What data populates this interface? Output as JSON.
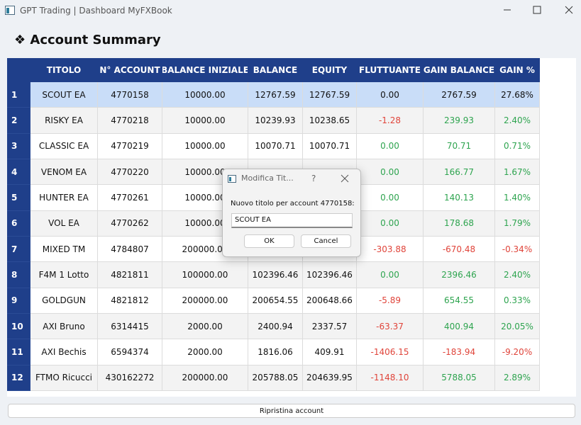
{
  "window": {
    "title": "GPT Trading | Dashboard MyFXBook"
  },
  "header": {
    "title": "Account Summary"
  },
  "table": {
    "columns": [
      "TITOLO",
      "N° ACCOUNT",
      "BALANCE INIZIALE",
      "BALANCE",
      "EQUITY",
      "FLUTTUANTE",
      "GAIN BALANCE",
      "GAIN %"
    ],
    "rows": [
      {
        "number": "1",
        "cells": [
          "SCOUT EA",
          "4770158",
          "10000.00",
          "12767.59",
          "12767.59",
          "0.00",
          "2767.59",
          "27.68%"
        ]
      },
      {
        "number": "2",
        "cells": [
          "RISKY EA",
          "4770218",
          "10000.00",
          "10239.93",
          "10238.65",
          "-1.28",
          "239.93",
          "2.40%"
        ]
      },
      {
        "number": "3",
        "cells": [
          "CLASSIC EA",
          "4770219",
          "10000.00",
          "10070.71",
          "10070.71",
          "0.00",
          "70.71",
          "0.71%"
        ]
      },
      {
        "number": "4",
        "cells": [
          "VENOM EA",
          "4770220",
          "10000.00",
          null,
          null,
          "0.00",
          "166.77",
          "1.67%"
        ]
      },
      {
        "number": "5",
        "cells": [
          "HUNTER EA",
          "4770261",
          "10000.00",
          null,
          null,
          "0.00",
          "140.13",
          "1.40%"
        ]
      },
      {
        "number": "6",
        "cells": [
          "VOL EA",
          "4770262",
          "10000.00",
          null,
          null,
          "0.00",
          "178.68",
          "1.79%"
        ]
      },
      {
        "number": "7",
        "cells": [
          "MIXED TM",
          "4784807",
          "200000.00",
          null,
          null,
          "-303.88",
          "-670.48",
          "-0.34%"
        ]
      },
      {
        "number": "8",
        "cells": [
          "F4M 1 Lotto",
          "4821811",
          "100000.00",
          "102396.46",
          "102396.46",
          "0.00",
          "2396.46",
          "2.40%"
        ]
      },
      {
        "number": "9",
        "cells": [
          "GOLDGUN",
          "4821812",
          "200000.00",
          "200654.55",
          "200648.66",
          "-5.89",
          "654.55",
          "0.33%"
        ]
      },
      {
        "number": "10",
        "cells": [
          "AXI Bruno",
          "6314415",
          "2000.00",
          "2400.94",
          "2337.57",
          "-63.37",
          "400.94",
          "20.05%"
        ]
      },
      {
        "number": "11",
        "cells": [
          "AXI Bechis",
          "6594374",
          "2000.00",
          "1816.06",
          "409.91",
          "-1406.15",
          "-183.94",
          "-9.20%"
        ]
      },
      {
        "number": "12",
        "cells": [
          "FTMO Ricucci",
          "430162272",
          "200000.00",
          "205788.05",
          "204639.95",
          "-1148.10",
          "5788.05",
          "2.89%"
        ]
      }
    ]
  },
  "dialog": {
    "title": "Modifica Tit...",
    "help": "?",
    "label": "Nuovo titolo per account 4770158:",
    "input": "SCOUT EA",
    "buttons": [
      "OK",
      "Cancel"
    ]
  },
  "footer": {
    "button": "Ripristina account"
  }
}
